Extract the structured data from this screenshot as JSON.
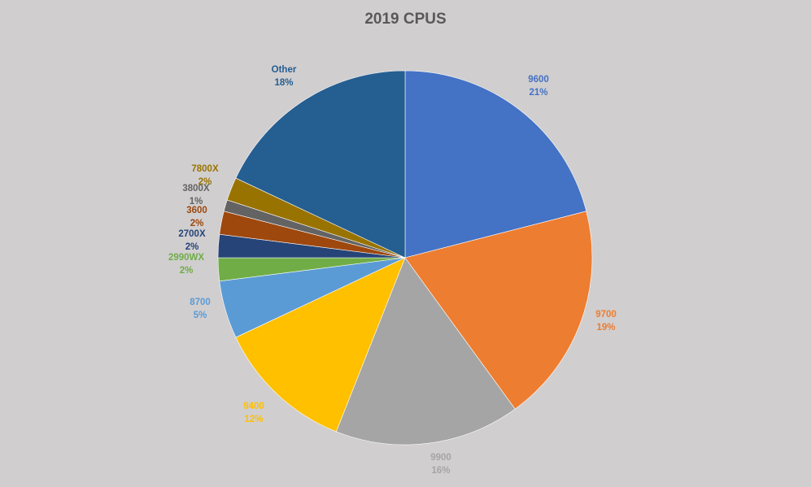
{
  "chart_data": {
    "type": "pie",
    "title": "2019 CPUS",
    "start_angle_deg": 0,
    "direction": "clockwise",
    "slices": [
      {
        "label": "9600",
        "value": 21,
        "value_label": "21%",
        "color": "#4472c4",
        "label_color": "#4472c4"
      },
      {
        "label": "9700",
        "value": 19,
        "value_label": "19%",
        "color": "#ed7d31",
        "label_color": "#ed7d31"
      },
      {
        "label": "9900",
        "value": 16,
        "value_label": "16%",
        "color": "#a5a5a5",
        "label_color": "#a5a5a5"
      },
      {
        "label": "9400",
        "value": 12,
        "value_label": "12%",
        "color": "#ffc000",
        "label_color": "#ffc000"
      },
      {
        "label": "8700",
        "value": 5,
        "value_label": "5%",
        "color": "#5b9bd5",
        "label_color": "#5b9bd5"
      },
      {
        "label": "2990WX",
        "value": 2,
        "value_label": "2%",
        "color": "#70ad47",
        "label_color": "#70ad47"
      },
      {
        "label": "2700X",
        "value": 2,
        "value_label": "2%",
        "color": "#264478",
        "label_color": "#264478"
      },
      {
        "label": "3600",
        "value": 2,
        "value_label": "2%",
        "color": "#9e480e",
        "label_color": "#9e480e"
      },
      {
        "label": "3800X",
        "value": 1,
        "value_label": "1%",
        "color": "#636363",
        "label_color": "#636363"
      },
      {
        "label": "7800X",
        "value": 2,
        "value_label": "2%",
        "color": "#997300",
        "label_color": "#997300"
      },
      {
        "label": "Other",
        "value": 18,
        "value_label": "18%",
        "color": "#255e91",
        "label_color": "#255e91"
      }
    ],
    "background_color": "#d0cecf",
    "title_color": "#595959"
  }
}
